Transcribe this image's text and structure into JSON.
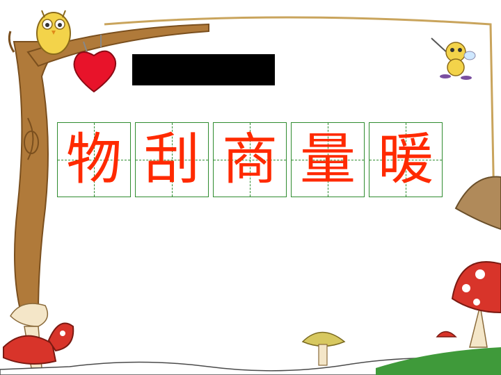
{
  "characters": [
    "物",
    "刮",
    "商",
    "量",
    "暖"
  ],
  "colors": {
    "character": "#ff2a00",
    "grid": "#2e8b2e",
    "title_block": "#000000",
    "branch": "#b07a3a",
    "heart": "#e8132a"
  },
  "icons": [
    "owl-icon",
    "heart-icon",
    "cartoon-bee-icon",
    "mushroom-icon",
    "tree-icon"
  ]
}
